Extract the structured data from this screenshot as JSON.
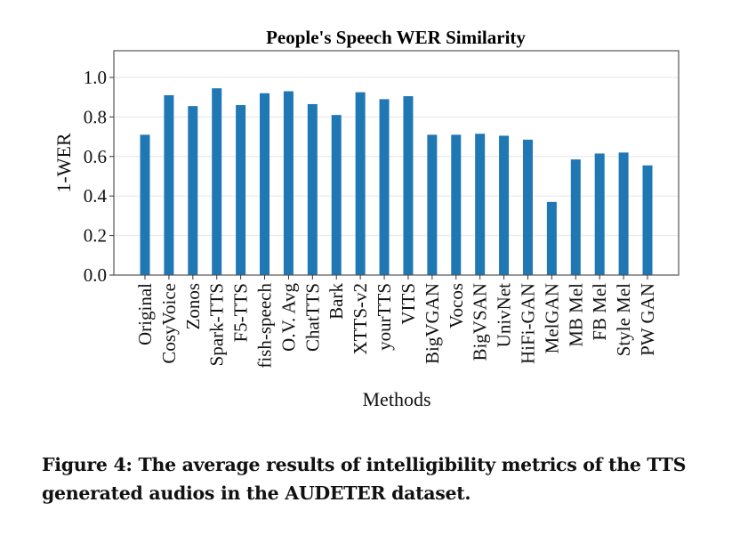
{
  "chart_data": {
    "type": "bar",
    "title": "People's Speech WER Similarity",
    "xlabel": "Methods",
    "ylabel": "1-WER",
    "ylim": [
      0,
      1.135
    ],
    "yticks": [
      "0.0",
      "0.2",
      "0.4",
      "0.6",
      "0.8",
      "1.0"
    ],
    "ytick_values": [
      0,
      0.2,
      0.4,
      0.6,
      0.8,
      1.0
    ],
    "grid": true,
    "bar_color": "#1f77b4",
    "categories": [
      "Original",
      "CosyVoice",
      "Zonos",
      "Spark-TTS",
      "F5-TTS",
      "fish-speech",
      "O.V. Avg",
      "ChatTTS",
      "Bark",
      "XTTS-v2",
      "yourTTS",
      "VITS",
      "BigVGAN",
      "Vocos",
      "BigVSAN",
      "UnivNet",
      "HiFi-GAN",
      "MelGAN",
      "MB Mel",
      "FB Mel",
      "Style Mel",
      "PW GAN"
    ],
    "values": [
      0.71,
      0.91,
      0.855,
      0.945,
      0.86,
      0.92,
      0.93,
      0.865,
      0.81,
      0.925,
      0.89,
      0.905,
      0.71,
      0.71,
      0.715,
      0.705,
      0.685,
      0.37,
      0.585,
      0.615,
      0.62,
      0.555
    ]
  },
  "caption": "Figure 4: The average results of intelligibility metrics of the TTS generated audios in the AUDETER dataset."
}
